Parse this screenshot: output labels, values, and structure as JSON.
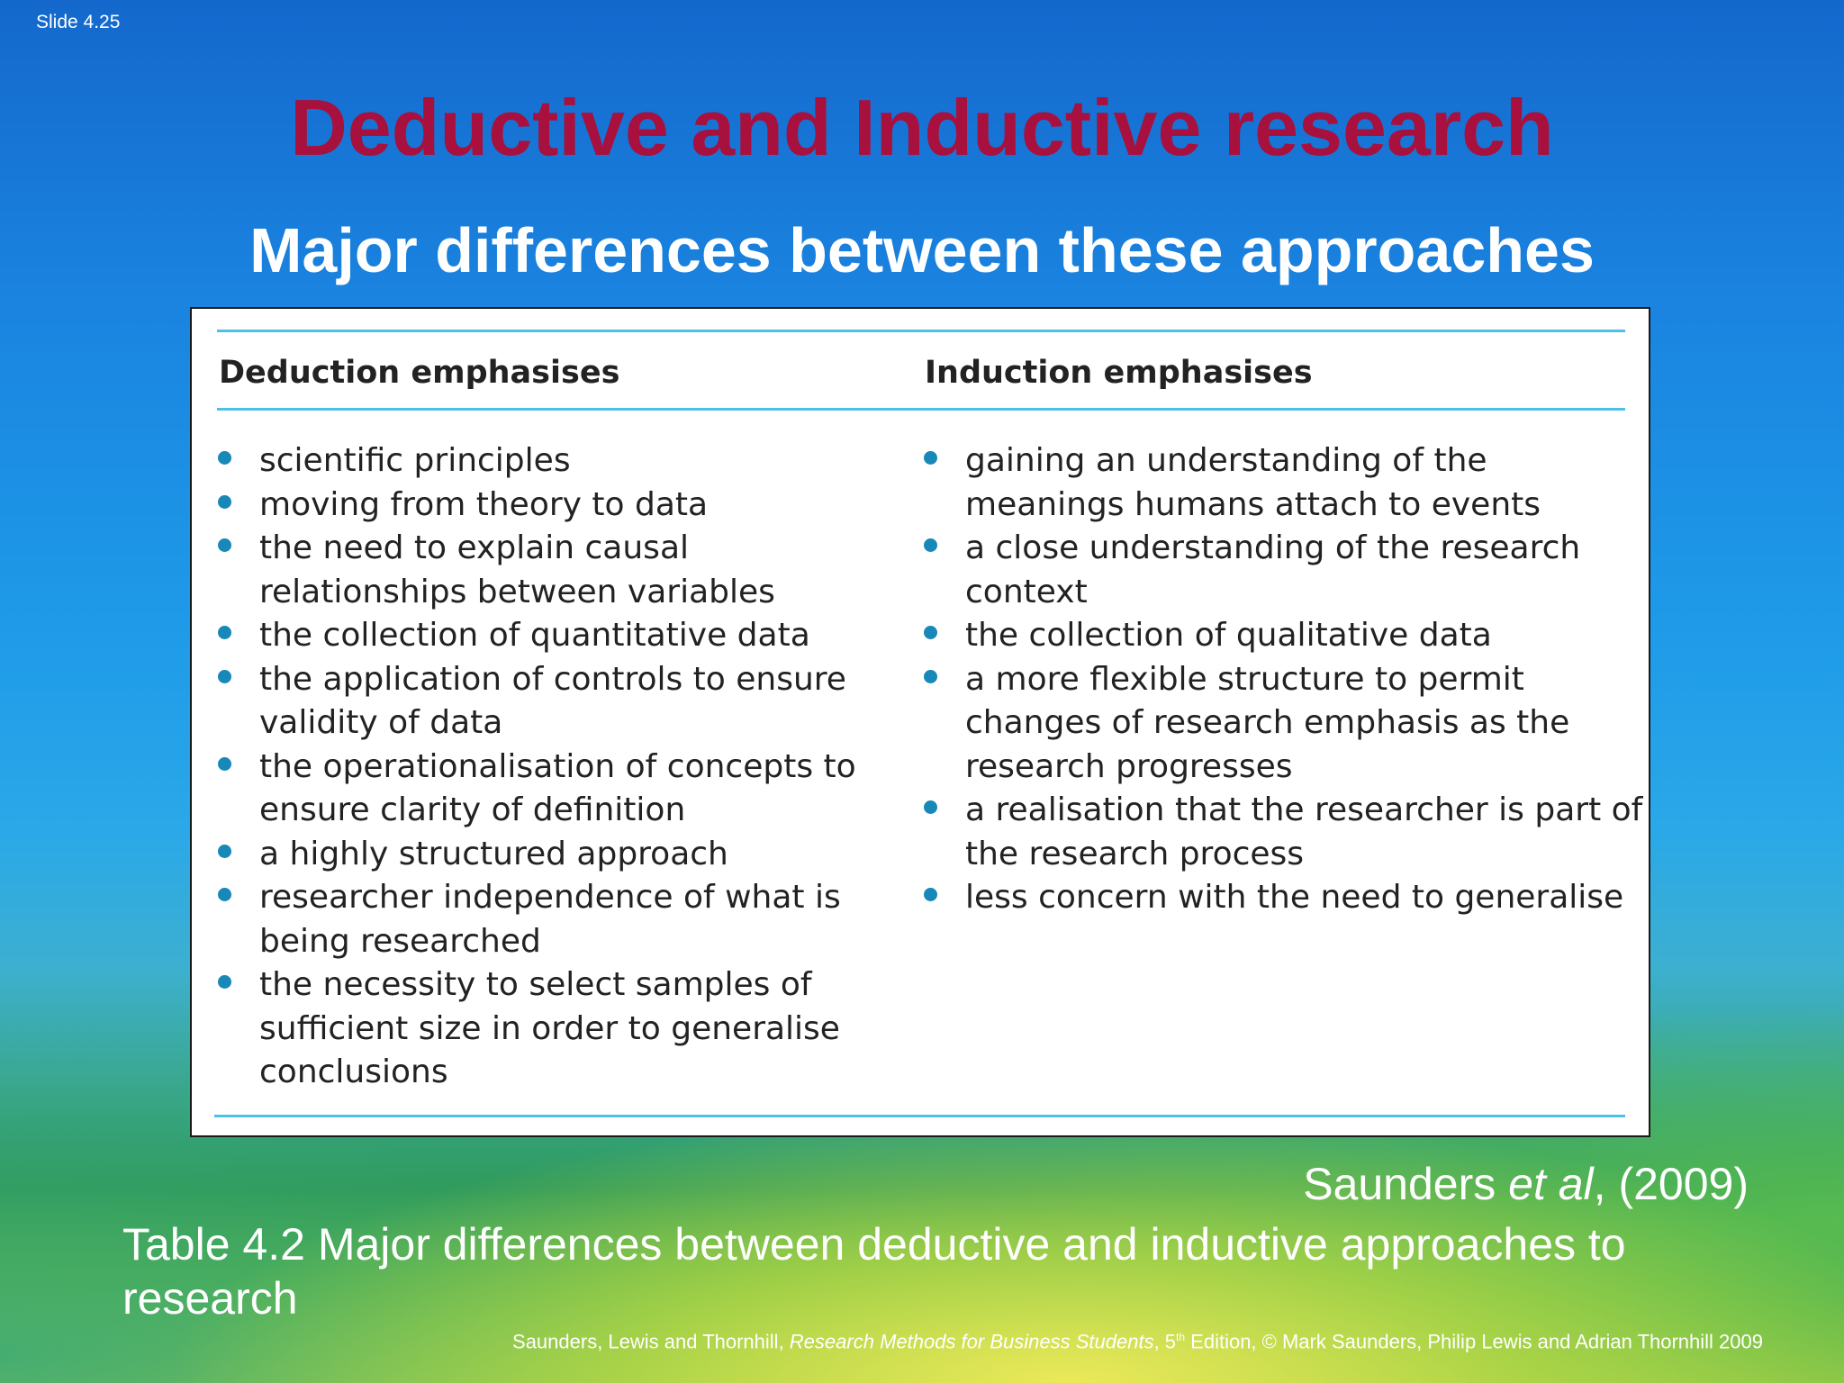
{
  "slide_number": "Slide 4.25",
  "title": "Deductive and Inductive research",
  "subtitle": "Major differences between these approaches",
  "table": {
    "deduction": {
      "heading": "Deduction emphasises",
      "items": [
        "scientific principles",
        "moving from theory to data",
        "the need to explain causal relationships between variables",
        "the collection of quantitative data",
        "the application of controls to ensure validity of data",
        "the operationalisation of concepts to ensure clarity of definition",
        "a highly structured approach",
        "researcher independence of what is being researched",
        "the necessity to select samples of sufficient size in order to generalise conclusions"
      ]
    },
    "induction": {
      "heading": "Induction emphasises",
      "items": [
        "gaining an understanding of the meanings humans attach to events",
        "a close understanding of the research context",
        "the collection of qualitative data",
        "a more flexible structure to permit changes of research emphasis as the research progresses",
        "a realisation that the researcher is part of the research process",
        "less concern with the need to generalise"
      ]
    }
  },
  "source": {
    "author": "Saunders ",
    "etal": "et al",
    "year": ", (2009)"
  },
  "caption": "Table 4.2  Major differences between deductive and inductive approaches to research",
  "footer": {
    "authors": "Saunders, Lewis and Thornhill, ",
    "book": "Research Methods for Business Students",
    "edition_num": ", 5",
    "edition_sup": "th",
    "rest": " Edition, © Mark Saunders, Philip Lewis and Adrian Thornhill 2009"
  }
}
